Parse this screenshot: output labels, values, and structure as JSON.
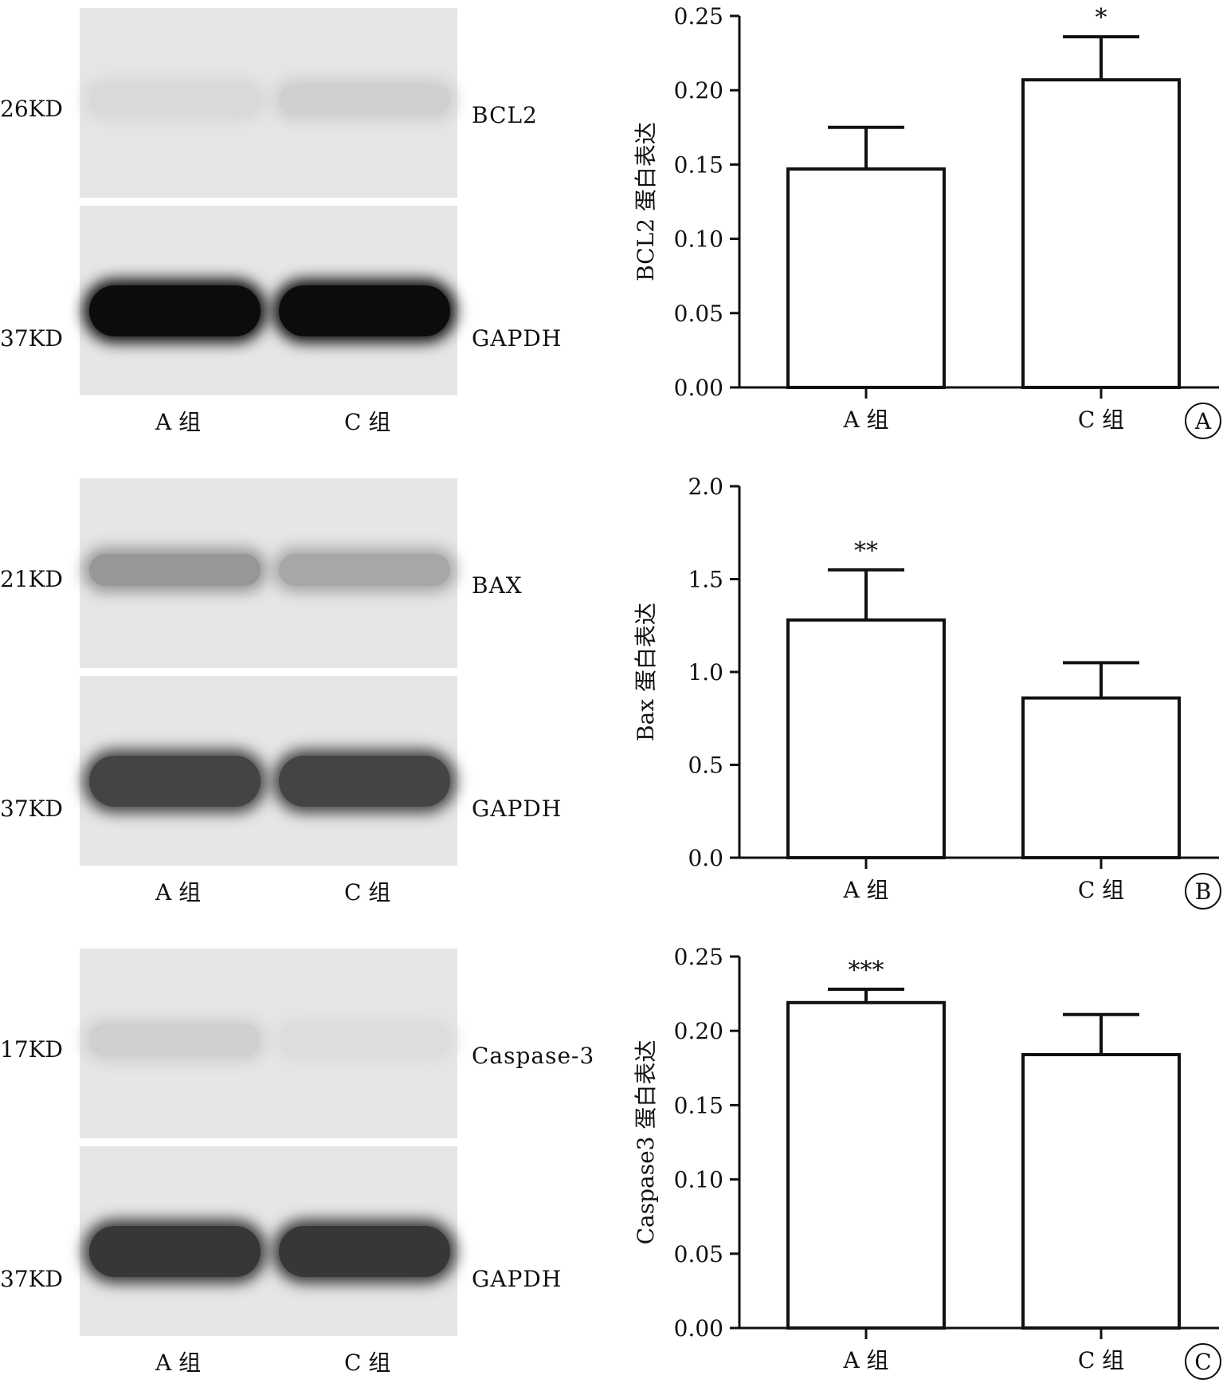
{
  "panels": [
    {
      "letter": "A",
      "target_kd": "26KD",
      "ref_kd": "37KD",
      "target_protein": "BCL2",
      "ref_protein": "GAPDH",
      "lanes": [
        "A 组",
        "C 组"
      ],
      "blot_intensity": {
        "target": [
          0.06,
          0.1
        ],
        "ref": [
          0.97,
          0.97
        ]
      }
    },
    {
      "letter": "B",
      "target_kd": "21KD",
      "ref_kd": "37KD",
      "target_protein": "BAX",
      "ref_protein": "GAPDH",
      "lanes": [
        "A 组",
        "C 组"
      ],
      "blot_intensity": {
        "target": [
          0.35,
          0.28
        ],
        "ref": [
          0.72,
          0.72
        ]
      }
    },
    {
      "letter": "C",
      "target_kd": "17KD",
      "ref_kd": "37KD",
      "target_protein": "Caspase-3",
      "ref_protein": "GAPDH",
      "lanes": [
        "A 组",
        "C 组"
      ],
      "blot_intensity": {
        "target": [
          0.1,
          0.04
        ],
        "ref": [
          0.78,
          0.78
        ]
      }
    }
  ],
  "chart_data": [
    {
      "type": "bar",
      "categories": [
        "A 组",
        "C 组"
      ],
      "values": [
        0.147,
        0.207
      ],
      "errors": [
        0.028,
        0.029
      ],
      "significance": [
        "",
        "*"
      ],
      "ylabel": "BCL2 蛋白表达",
      "ylim": [
        0,
        0.25
      ],
      "yticks": [
        "0.00",
        "0.05",
        "0.10",
        "0.15",
        "0.20",
        "0.25"
      ],
      "panel_label": "A"
    },
    {
      "type": "bar",
      "categories": [
        "A 组",
        "C 组"
      ],
      "values": [
        1.28,
        0.86
      ],
      "errors": [
        0.27,
        0.19
      ],
      "significance": [
        "**",
        ""
      ],
      "ylabel": "Bax 蛋白表达",
      "ylim": [
        0,
        2.0
      ],
      "yticks": [
        "0.0",
        "0.5",
        "1.0",
        "1.5",
        "2.0"
      ],
      "panel_label": "B"
    },
    {
      "type": "bar",
      "categories": [
        "A 组",
        "C 组"
      ],
      "values": [
        0.219,
        0.184
      ],
      "errors": [
        0.009,
        0.027
      ],
      "significance": [
        "***",
        ""
      ],
      "ylabel": "Caspase3 蛋白表达",
      "ylim": [
        0,
        0.25
      ],
      "yticks": [
        "0.00",
        "0.05",
        "0.10",
        "0.15",
        "0.20",
        "0.25"
      ],
      "panel_label": "C"
    }
  ]
}
